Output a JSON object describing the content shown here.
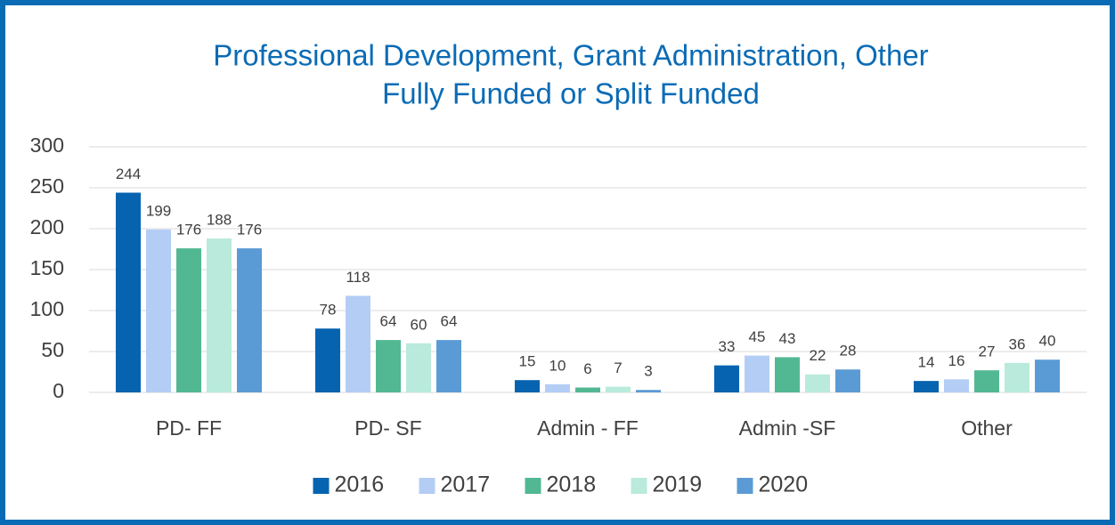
{
  "chart_data": {
    "type": "bar",
    "title": [
      "Professional Development, Grant Administration, Other",
      "Fully Funded or Split Funded"
    ],
    "categories": [
      "PD- FF",
      "PD- SF",
      "Admin - FF",
      "Admin -SF",
      "Other"
    ],
    "series": [
      {
        "name": "2016",
        "color": "#0563b0",
        "values": [
          244,
          78,
          15,
          33,
          14
        ]
      },
      {
        "name": "2017",
        "color": "#b4cdf5",
        "values": [
          199,
          118,
          10,
          45,
          16
        ]
      },
      {
        "name": "2018",
        "color": "#52b893",
        "values": [
          176,
          64,
          6,
          43,
          27
        ]
      },
      {
        "name": "2019",
        "color": "#b9eadb",
        "values": [
          188,
          60,
          7,
          22,
          36
        ]
      },
      {
        "name": "2020",
        "color": "#5b9bd5",
        "values": [
          176,
          64,
          3,
          28,
          40
        ]
      }
    ],
    "ylim": [
      0,
      300
    ],
    "yticks": [
      0,
      50,
      100,
      150,
      200,
      250,
      300
    ],
    "grid": true,
    "legend": "bottom"
  }
}
